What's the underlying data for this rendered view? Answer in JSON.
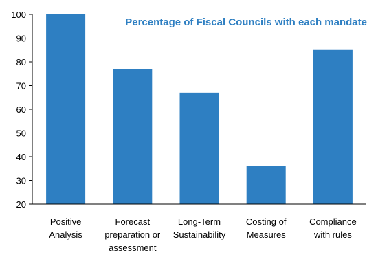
{
  "chart_data": {
    "type": "bar",
    "title": "Percentage of Fiscal Councils with each mandate",
    "xlabel": "",
    "ylabel": "",
    "categories": [
      "Positive Analysis",
      "Forecast preparation or assessment",
      "Long-Term Sustainability",
      "Costing of Measures",
      "Compliance with rules"
    ],
    "category_lines": [
      [
        "Positive",
        "Analysis"
      ],
      [
        "Forecast",
        "preparation or",
        "assessment"
      ],
      [
        "Long-Term",
        "Sustainability"
      ],
      [
        "Costing of",
        "Measures"
      ],
      [
        "Compliance",
        "with rules"
      ]
    ],
    "values": [
      100,
      77,
      67,
      36,
      85
    ],
    "ylim": [
      20,
      100
    ],
    "yticks": [
      20,
      30,
      40,
      50,
      60,
      70,
      80,
      90,
      100
    ],
    "grid": false,
    "legend": "none",
    "colors": {
      "bar": "#2E7FC2",
      "title": "#2E7FC2",
      "axis": "#000000"
    }
  }
}
